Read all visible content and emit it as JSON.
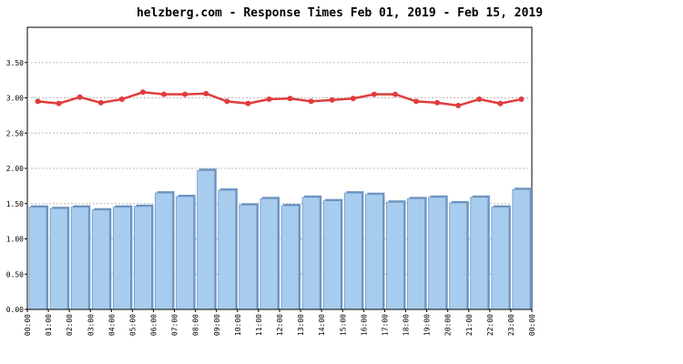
{
  "chart_data": {
    "type": "bar_line",
    "title": "helzberg.com - Response Times Feb 01, 2019 - Feb 15, 2019",
    "xticks": [
      "00:00",
      "01:00",
      "02:00",
      "03:00",
      "04:00",
      "05:00",
      "06:00",
      "07:00",
      "08:00",
      "09:00",
      "10:00",
      "11:00",
      "12:00",
      "13:00",
      "14:00",
      "15:00",
      "16:00",
      "17:00",
      "18:00",
      "19:00",
      "20:00",
      "21:00",
      "22:00",
      "23:00",
      "00:00"
    ],
    "series": [
      {
        "type": "bar",
        "color": "#a8ccee",
        "values": [
          1.45,
          1.43,
          1.45,
          1.41,
          1.45,
          1.46,
          1.65,
          1.6,
          1.97,
          1.69,
          1.48,
          1.57,
          1.47,
          1.59,
          1.54,
          1.65,
          1.63,
          1.52,
          1.57,
          1.59,
          1.51,
          1.59,
          1.45,
          1.7
        ]
      },
      {
        "type": "line",
        "color": "#e03c3c",
        "values": [
          2.95,
          2.92,
          3.01,
          2.93,
          2.98,
          3.08,
          3.05,
          3.05,
          3.06,
          2.95,
          2.92,
          2.98,
          2.99,
          2.95,
          2.97,
          2.99,
          3.05,
          3.05,
          2.95,
          2.93,
          2.89,
          2.98,
          2.92,
          2.98
        ]
      }
    ],
    "ylim": [
      0,
      4
    ],
    "yticks": [
      {
        "value": 0,
        "label": "0.00"
      },
      {
        "value": 0.5,
        "label": "0.50"
      },
      {
        "value": 1,
        "label": "1.00"
      },
      {
        "value": 1.5,
        "label": "1.50"
      },
      {
        "value": 2,
        "label": "2.00"
      },
      {
        "value": 2.5,
        "label": "2.50"
      },
      {
        "value": 3,
        "label": "3.00"
      },
      {
        "value": 3.5,
        "label": "3.50"
      }
    ],
    "grid": true
  }
}
